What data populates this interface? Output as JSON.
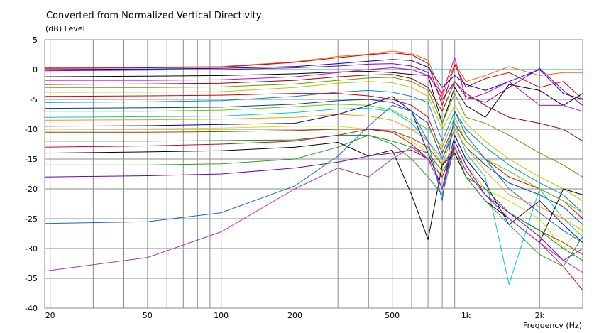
{
  "chart_data": {
    "type": "line",
    "title": "Converted from Normalized Vertical Directivity",
    "ylabel": "(dB)  Level",
    "xlabel": "Frequency  (Hz)",
    "xscale": "log",
    "xlim": [
      19,
      3000
    ],
    "ylim": [
      -40,
      5
    ],
    "grid": true,
    "legend": "none",
    "y_ticks": [
      5,
      0,
      -5,
      -10,
      -15,
      -20,
      -25,
      -30,
      -35,
      -40
    ],
    "x_ticks": [
      {
        "v": 20,
        "label": "20"
      },
      {
        "v": 50,
        "label": "50"
      },
      {
        "v": 100,
        "label": "100"
      },
      {
        "v": 200,
        "label": "200"
      },
      {
        "v": 500,
        "label": "500"
      },
      {
        "v": 1000,
        "label": "1k"
      },
      {
        "v": 2000,
        "label": "2k"
      }
    ],
    "x_grid": [
      20,
      30,
      40,
      50,
      60,
      70,
      80,
      90,
      100,
      200,
      300,
      400,
      500,
      600,
      700,
      800,
      900,
      1000,
      2000,
      3000
    ],
    "x": [
      19,
      50,
      100,
      200,
      300,
      400,
      500,
      600,
      700,
      800,
      900,
      1000,
      1200,
      1500,
      2000,
      2500,
      3000
    ],
    "series": [
      {
        "color": "#00b0b0",
        "values": [
          0,
          0,
          0,
          0,
          0,
          0,
          0,
          0,
          0,
          0,
          0,
          0,
          0,
          0,
          0,
          0,
          0
        ]
      },
      {
        "color": "#ff6600",
        "values": [
          0.3,
          0.4,
          0.5,
          1.3,
          2.2,
          2.6,
          3.1,
          2.7,
          1.6,
          -4.5,
          1.0,
          -2.0,
          -1.0,
          0.5,
          -1.0,
          -0.5,
          -0.5
        ]
      },
      {
        "color": "#cc0000",
        "values": [
          0.2,
          0.3,
          0.4,
          1.2,
          2.0,
          2.5,
          2.8,
          2.5,
          1.0,
          -6.0,
          0.8,
          -3.0,
          -1.5,
          -0.5,
          -3.0,
          -2.0,
          -5.0
        ]
      },
      {
        "color": "#0000cc",
        "values": [
          0,
          0.1,
          0.2,
          0.5,
          1.0,
          1.4,
          1.7,
          1.5,
          0.4,
          -3.0,
          -1.0,
          -2.5,
          -3.5,
          -2.0,
          0.0,
          -4.0,
          -5.0
        ]
      },
      {
        "color": "#8800aa",
        "values": [
          -0.2,
          -0.1,
          0,
          0.3,
          0.6,
          0.9,
          1.0,
          0.6,
          -0.5,
          -5.0,
          -2.0,
          -4.5,
          -5.5,
          -3.0,
          0.2,
          -3.5,
          -6.0
        ]
      },
      {
        "color": "#000000",
        "values": [
          -1.2,
          -1.1,
          -1.0,
          -0.7,
          -0.4,
          -0.3,
          -0.5,
          -0.8,
          -1.0,
          -9.0,
          -3.0,
          -6.0,
          -8.0,
          -2.5,
          -3.5,
          -6.0,
          -4.0
        ]
      },
      {
        "color": "#cc00cc",
        "values": [
          -1.8,
          -1.8,
          -1.7,
          -1.2,
          -0.5,
          0.0,
          0.3,
          0.0,
          -1.0,
          -4.0,
          2.0,
          -5.0,
          -4.0,
          -2.0,
          -6.0,
          -6.0,
          -7.0
        ]
      },
      {
        "color": "#990000",
        "values": [
          -2.5,
          -2.4,
          -2.3,
          -1.8,
          -1.2,
          -0.9,
          -0.8,
          -1.5,
          -3.0,
          -7.0,
          -2.0,
          -4.0,
          -6.0,
          -8.0,
          -9.0,
          -10.0,
          -12.0
        ]
      },
      {
        "color": "#669900",
        "values": [
          -3.0,
          -3.0,
          -2.9,
          -2.4,
          -1.8,
          -1.4,
          -1.3,
          -2.0,
          -3.5,
          -9.0,
          -4.0,
          -8.0,
          -9.0,
          -11.0,
          -14.0,
          -16.0,
          -18.0
        ]
      },
      {
        "color": "#aacc00",
        "values": [
          -3.8,
          -3.8,
          -3.7,
          -3.0,
          -2.3,
          -2.0,
          -2.2,
          -3.0,
          -4.5,
          -10.0,
          -6.0,
          -9.0,
          -12.0,
          -15.0,
          -18.0,
          -20.0,
          -22.0
        ]
      },
      {
        "color": "#0088cc",
        "values": [
          -5.5,
          -5.4,
          -5.2,
          -4.5,
          -3.8,
          -3.5,
          -3.8,
          -4.5,
          -5.5,
          -12.0,
          -7.0,
          -10.0,
          -13.0,
          -16.0,
          -19.0,
          -21.0,
          -24.0
        ]
      },
      {
        "color": "#dd0000",
        "values": [
          -4.5,
          -4.4,
          -4.3,
          -4.0,
          -4.0,
          -4.4,
          -5.0,
          -6.0,
          -8.0,
          -14.0,
          -9.0,
          -12.0,
          -15.0,
          -18.0,
          -20.0,
          -22.0,
          -25.0
        ]
      },
      {
        "color": "#004499",
        "values": [
          -6.5,
          -6.4,
          -6.3,
          -5.8,
          -5.2,
          -5.0,
          -5.5,
          -7.0,
          -9.0,
          -15.0,
          -10.0,
          -13.0,
          -16.0,
          -19.0,
          -21.0,
          -23.0,
          -26.0
        ]
      },
      {
        "color": "#66cc00",
        "values": [
          -7.0,
          -7.0,
          -6.8,
          -6.2,
          -5.8,
          -6.0,
          -6.8,
          -8.5,
          -10.0,
          -13.0,
          -8.0,
          -12.0,
          -15.0,
          -17.0,
          -20.0,
          -22.0,
          -24.0
        ]
      },
      {
        "color": "#00cccc",
        "values": [
          -8.0,
          -7.9,
          -7.8,
          -7.2,
          -6.6,
          -6.5,
          -7.0,
          -9.0,
          -12.0,
          -15.0,
          -9.0,
          -14.0,
          -18.0,
          -36.0,
          -20.0,
          -25.0,
          -28.0
        ]
      },
      {
        "color": "#ff9900",
        "values": [
          -8.5,
          -8.4,
          -8.3,
          -8.0,
          -7.5,
          -7.8,
          -8.5,
          -10.0,
          -12.0,
          -16.0,
          -10.0,
          -13.0,
          -17.0,
          -21.0,
          -23.0,
          -25.0,
          -27.0
        ]
      },
      {
        "color": "#0000aa",
        "values": [
          -9.5,
          -9.4,
          -9.2,
          -9.0,
          -7.5,
          -6.0,
          -4.5,
          -7.0,
          -14.0,
          -20.0,
          -11.0,
          -15.0,
          -19.0,
          -26.0,
          -22.0,
          -26.0,
          -29.0
        ]
      },
      {
        "color": "#dddd00",
        "values": [
          -10.0,
          -9.9,
          -9.8,
          -9.5,
          -9.5,
          -10.0,
          -10.5,
          -12.0,
          -14.0,
          -18.0,
          -12.0,
          -16.0,
          -20.0,
          -22.0,
          -25.0,
          -30.0,
          -26.0
        ]
      },
      {
        "color": "#994400",
        "values": [
          -10.5,
          -10.5,
          -10.4,
          -10.2,
          -10.0,
          -10.0,
          -10.3,
          -11.5,
          -13.0,
          -16.0,
          -13.0,
          -17.0,
          -21.0,
          -24.0,
          -27.0,
          -29.0,
          -31.0
        ]
      },
      {
        "color": "#009900",
        "values": [
          -12.0,
          -12.0,
          -11.9,
          -11.8,
          -11.0,
          -11.0,
          -12.0,
          -13.0,
          -14.0,
          -17.0,
          -14.0,
          -18.0,
          -20.0,
          -24.0,
          -27.0,
          -30.0,
          -32.0
        ]
      },
      {
        "color": "#cc0044",
        "values": [
          -13.0,
          -12.8,
          -12.5,
          -12.0,
          -11.0,
          -10.0,
          -10.5,
          -12.5,
          -15.0,
          -18.0,
          -13.0,
          -17.0,
          -21.0,
          -25.0,
          -29.0,
          -33.0,
          -37.0
        ]
      },
      {
        "color": "#000000",
        "values": [
          -14.0,
          -13.8,
          -13.6,
          -13.0,
          -12.2,
          -14.5,
          -13.5,
          -21.0,
          -28.5,
          -16.0,
          -14.0,
          -18.0,
          -22.0,
          -25.0,
          -29.0,
          -20.0,
          -21.0
        ]
      },
      {
        "color": "#339933",
        "values": [
          -16.0,
          -16.0,
          -15.8,
          -15.0,
          -13.0,
          -11.0,
          -12.5,
          -15.0,
          -18.0,
          -21.0,
          -13.0,
          -18.0,
          -22.0,
          -26.0,
          -31.0,
          -33.0,
          -28.0
        ]
      },
      {
        "color": "#6600cc",
        "values": [
          -18.0,
          -17.8,
          -17.5,
          -16.5,
          -15.5,
          -14.5,
          -14.0,
          -13.5,
          -15.0,
          -20.0,
          -12.0,
          -16.0,
          -21.0,
          -24.0,
          -28.0,
          -32.0,
          -30.0
        ]
      },
      {
        "color": "#1166dd",
        "values": [
          -25.8,
          -25.5,
          -24.0,
          -19.5,
          -14.5,
          -9.5,
          -6.0,
          -7.0,
          -12.0,
          -22.0,
          -7.0,
          -11.0,
          -15.0,
          -20.0,
          -24.0,
          -27.0,
          -29.0
        ]
      },
      {
        "color": "#aa33aa",
        "values": [
          -33.8,
          -31.5,
          -27.2,
          -20.0,
          -16.5,
          -18.0,
          -15.0,
          -13.0,
          -15.0,
          -20.0,
          -13.0,
          -17.0,
          -21.0,
          -25.0,
          -29.0,
          -32.0,
          -34.0
        ]
      }
    ]
  }
}
